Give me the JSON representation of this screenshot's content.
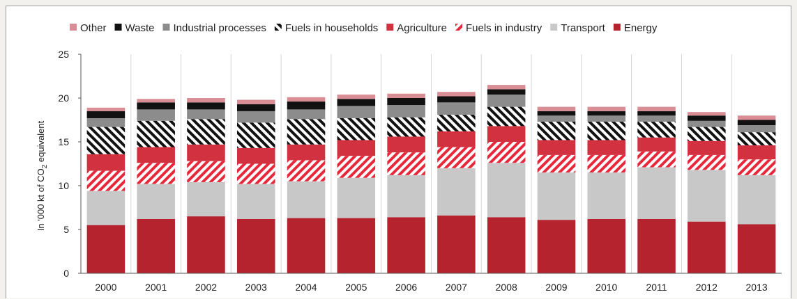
{
  "chart_data": {
    "type": "bar",
    "stacked": true,
    "categories": [
      "2000",
      "2001",
      "2002",
      "2003",
      "2004",
      "2005",
      "2006",
      "2007",
      "2008",
      "2009",
      "2010",
      "2011",
      "2012",
      "2013"
    ],
    "series": [
      {
        "name": "Energy",
        "color": "#b5232f",
        "pattern": "solid",
        "values": [
          5.5,
          6.2,
          6.5,
          6.2,
          6.3,
          6.3,
          6.4,
          6.6,
          6.4,
          6.1,
          6.2,
          6.2,
          5.9,
          5.6
        ]
      },
      {
        "name": "Transport",
        "color": "#c8c8c8",
        "pattern": "solid",
        "values": [
          3.9,
          4.0,
          3.9,
          4.0,
          4.2,
          4.6,
          4.8,
          5.4,
          6.2,
          5.4,
          5.3,
          5.9,
          5.9,
          5.6
        ]
      },
      {
        "name": "Fuels in industry",
        "color": "#e8283a",
        "pattern": "hatch-red",
        "values": [
          2.3,
          2.4,
          2.4,
          2.3,
          2.4,
          2.5,
          2.6,
          2.4,
          2.4,
          2.0,
          2.0,
          1.8,
          1.7,
          1.8
        ]
      },
      {
        "name": "Agriculture",
        "color": "#d23240",
        "pattern": "solid",
        "values": [
          1.9,
          1.8,
          1.9,
          1.8,
          1.8,
          1.8,
          1.8,
          1.8,
          1.8,
          1.7,
          1.7,
          1.6,
          1.6,
          1.6
        ]
      },
      {
        "name": "Fuels in households",
        "color": "#111111",
        "pattern": "hatch-black",
        "values": [
          3.1,
          3.0,
          2.9,
          2.9,
          2.9,
          2.5,
          2.2,
          1.9,
          2.2,
          2.1,
          2.1,
          1.8,
          1.6,
          1.5
        ]
      },
      {
        "name": "Industrial processes",
        "color": "#8c8c8c",
        "pattern": "solid",
        "values": [
          1.0,
          1.3,
          1.1,
          1.3,
          1.1,
          1.4,
          1.4,
          1.4,
          1.4,
          0.7,
          0.7,
          0.7,
          0.7,
          0.8
        ]
      },
      {
        "name": "Waste",
        "color": "#111111",
        "pattern": "solid",
        "values": [
          0.8,
          0.8,
          0.8,
          0.8,
          0.9,
          0.8,
          0.8,
          0.7,
          0.6,
          0.5,
          0.5,
          0.5,
          0.6,
          0.6
        ]
      },
      {
        "name": "Other",
        "color": "#d98e96",
        "pattern": "solid",
        "values": [
          0.4,
          0.4,
          0.5,
          0.5,
          0.5,
          0.5,
          0.5,
          0.5,
          0.5,
          0.5,
          0.5,
          0.5,
          0.4,
          0.5
        ]
      }
    ],
    "legend_order": [
      "Other",
      "Waste",
      "Industrial processes",
      "Fuels in households",
      "Agriculture",
      "Fuels in industry",
      "Transport",
      "Energy"
    ],
    "legend_position": "top",
    "ylabel_parts": [
      "In '000 kt of CO",
      "2",
      " equivalent"
    ],
    "ylim": [
      0,
      25
    ],
    "yticks": [
      0,
      5,
      10,
      15,
      20,
      25
    ],
    "grid": "vertical separators between categories"
  }
}
